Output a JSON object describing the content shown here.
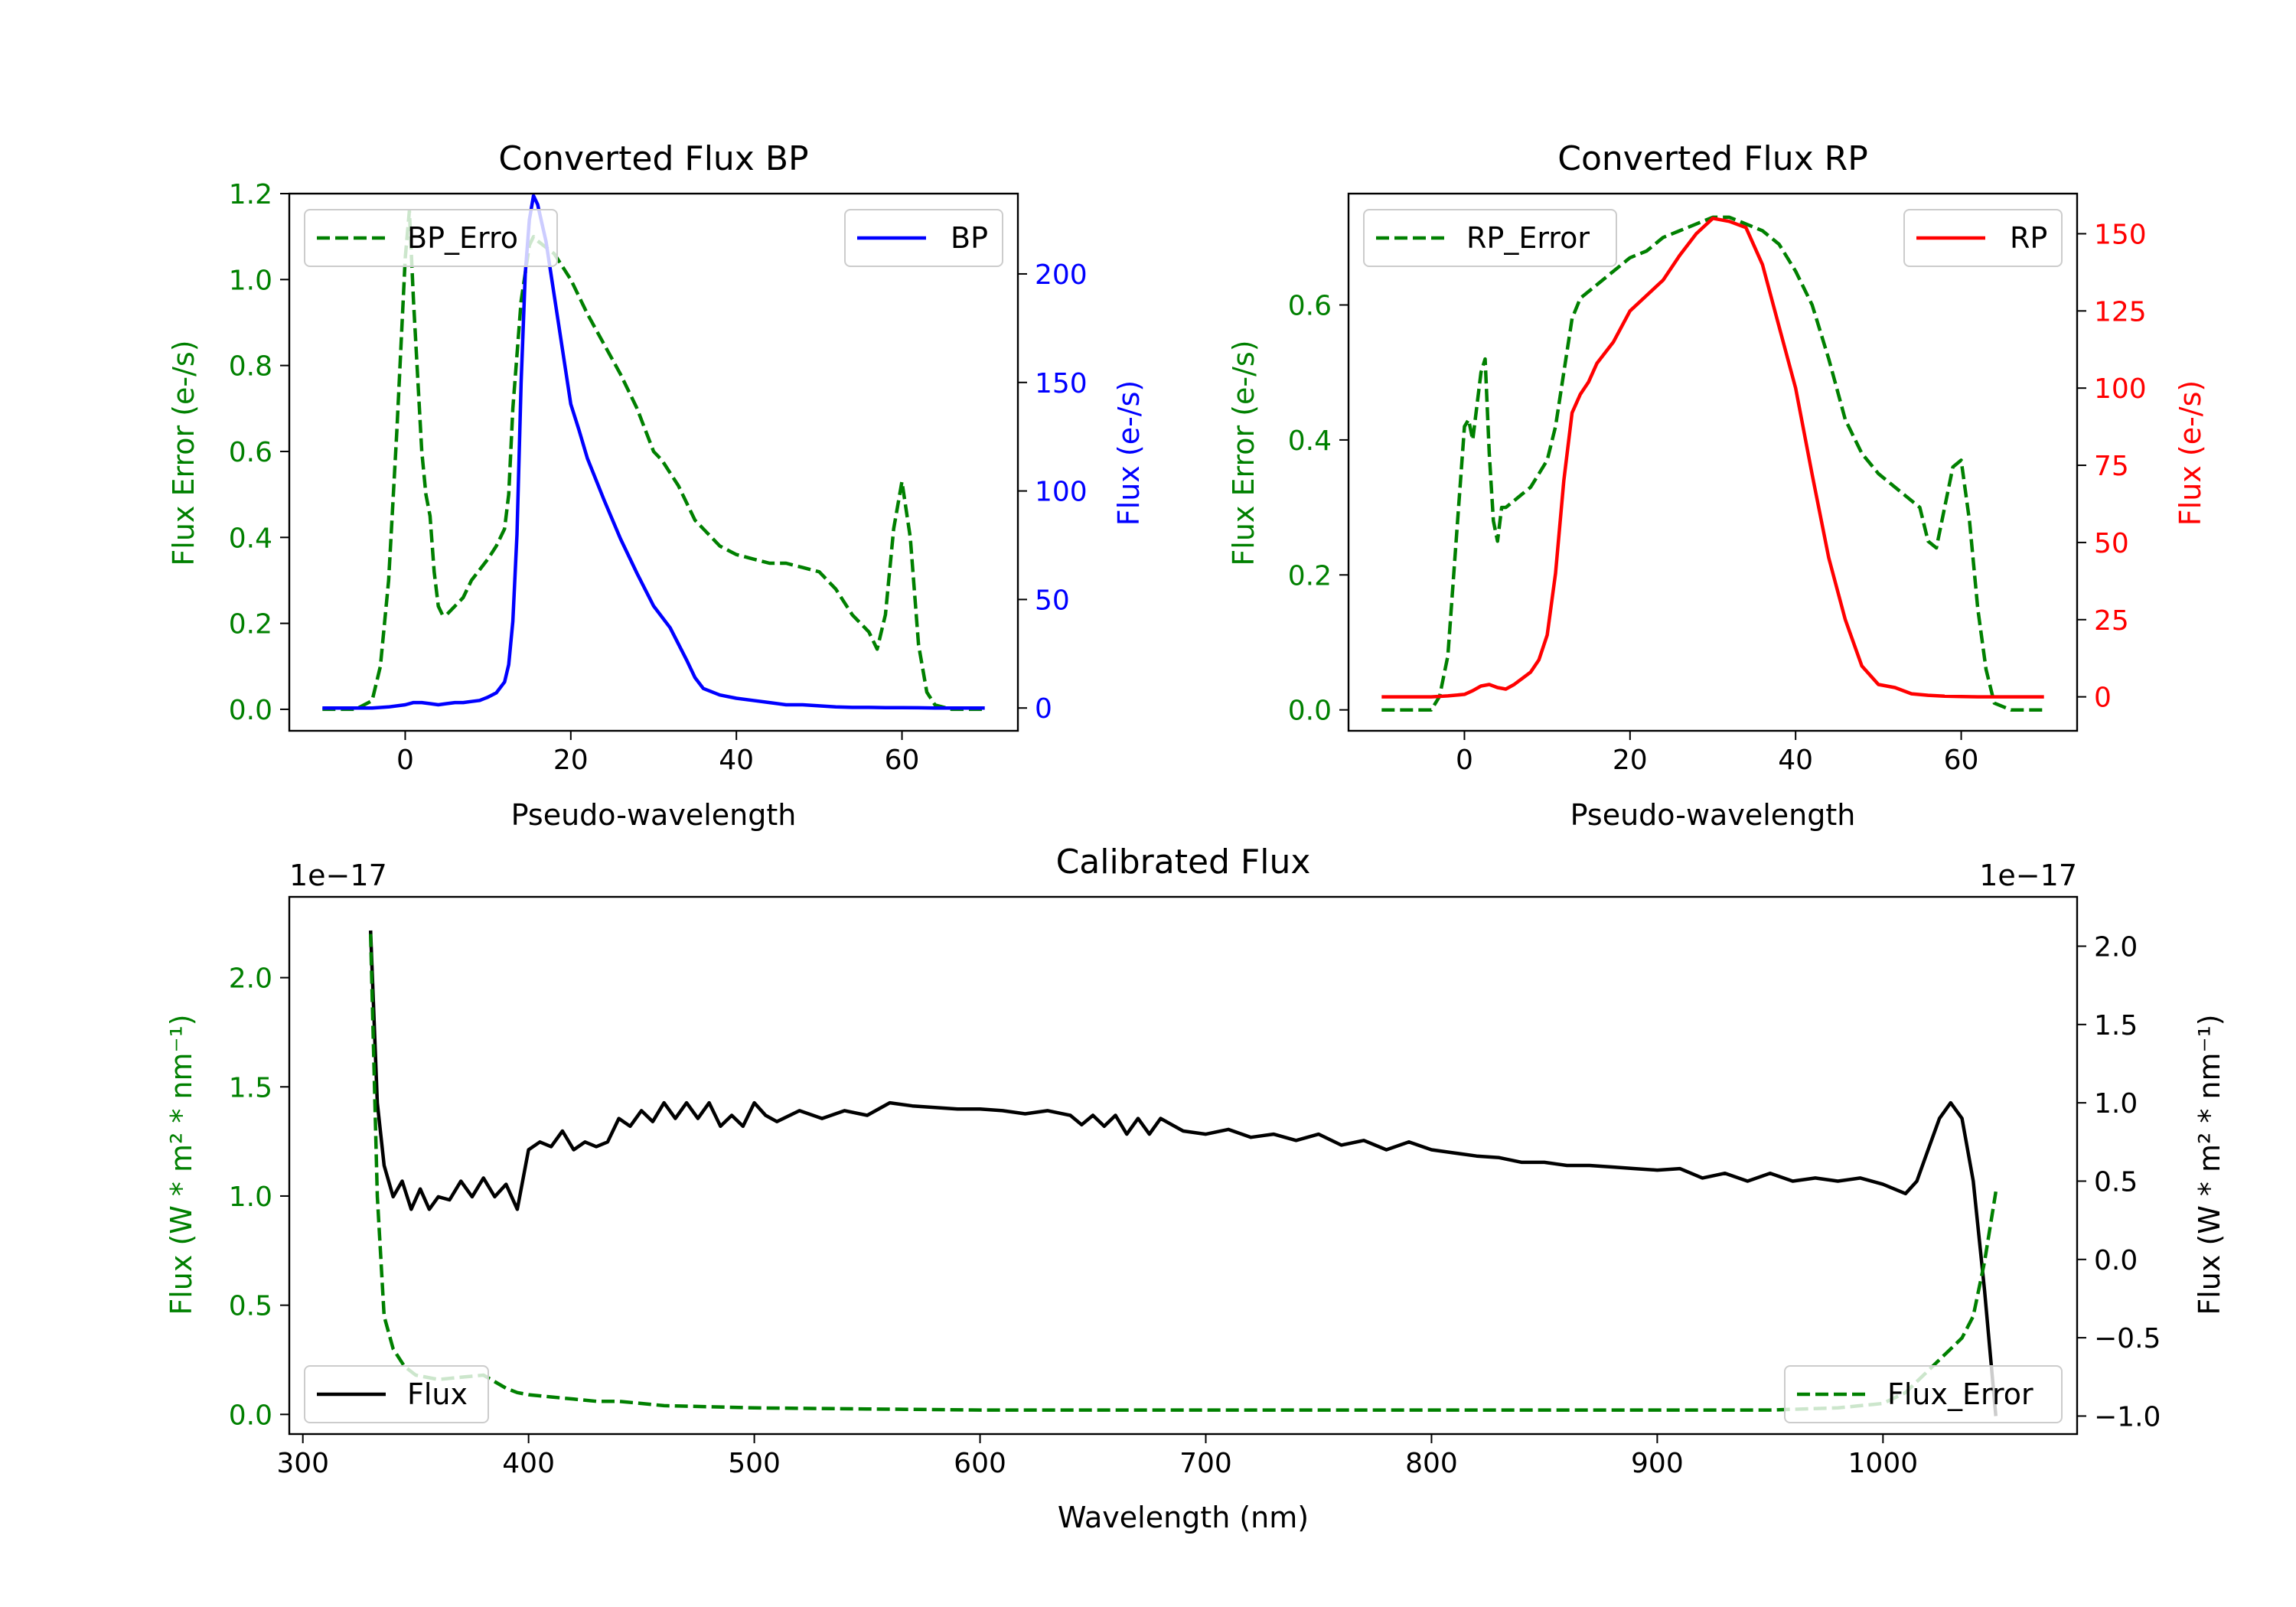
{
  "chart_data": [
    {
      "id": "bp",
      "type": "line",
      "title": "Converted Flux BP",
      "xlabel": "Pseudo-wavelength",
      "ylabel_left": "Flux Error (e-/s)",
      "ylabel_right": "Flux (e-/s)",
      "xlim": [
        -14,
        74
      ],
      "ylim_left": [
        -0.05,
        1.2
      ],
      "ylim_right": [
        -10.5,
        237
      ],
      "xticks": [
        0,
        20,
        40,
        60
      ],
      "xtick_labels": [
        "0",
        "20",
        "40",
        "60"
      ],
      "yticks_left": [
        0.0,
        0.2,
        0.4,
        0.6,
        0.8,
        1.0,
        1.2
      ],
      "ytick_labels_left": [
        "0.0",
        "0.2",
        "0.4",
        "0.6",
        "0.8",
        "1.0",
        "1.2"
      ],
      "yticks_right": [
        0,
        50,
        100,
        150,
        200
      ],
      "ytick_labels_right": [
        "0",
        "50",
        "100",
        "150",
        "200"
      ],
      "left_color": "#008000",
      "right_color": "#0000ff",
      "series": [
        {
          "name": "BP_Error",
          "legend_label": "BP_Erro",
          "axis": "left",
          "style": "dashed",
          "color": "#008000",
          "x": [
            -10,
            -6,
            -4,
            -3,
            -2,
            -1,
            0,
            0.5,
            1,
            2,
            2.5,
            3,
            3.5,
            4,
            4.5,
            5,
            6,
            7,
            8,
            10,
            11,
            12,
            12.5,
            13,
            14,
            15,
            15.5,
            16,
            18,
            20,
            22,
            24,
            26,
            28,
            30,
            31,
            32,
            33,
            34,
            35,
            36,
            38,
            40,
            42,
            44,
            46,
            48,
            50,
            52,
            54,
            56,
            57,
            58,
            59,
            60,
            61,
            62,
            63,
            64,
            66,
            68,
            70
          ],
          "y": [
            0.0,
            0.0,
            0.02,
            0.1,
            0.3,
            0.65,
            1.05,
            1.16,
            0.95,
            0.6,
            0.5,
            0.45,
            0.32,
            0.24,
            0.22,
            0.22,
            0.24,
            0.26,
            0.3,
            0.35,
            0.38,
            0.42,
            0.5,
            0.7,
            0.95,
            1.08,
            1.1,
            1.09,
            1.06,
            1.0,
            0.92,
            0.85,
            0.78,
            0.7,
            0.6,
            0.58,
            0.55,
            0.52,
            0.48,
            0.44,
            0.42,
            0.38,
            0.36,
            0.35,
            0.34,
            0.34,
            0.33,
            0.32,
            0.28,
            0.22,
            0.18,
            0.14,
            0.22,
            0.42,
            0.53,
            0.4,
            0.15,
            0.04,
            0.01,
            0.0,
            0.0,
            0.0
          ]
        },
        {
          "name": "BP",
          "legend_label": "BP",
          "axis": "right",
          "style": "solid",
          "color": "#0000ff",
          "x": [
            -10,
            -6,
            -4,
            -2,
            0,
            1,
            2,
            3,
            4,
            5,
            6,
            7,
            8,
            9,
            10,
            11,
            12,
            12.5,
            13,
            13.5,
            14,
            14.5,
            15,
            15.5,
            16,
            17,
            18,
            19,
            20,
            21,
            22,
            24,
            26,
            28,
            30,
            32,
            34,
            35,
            36,
            38,
            40,
            42,
            44,
            46,
            48,
            50,
            52,
            54,
            56,
            58,
            60,
            62,
            64,
            66,
            68,
            70
          ],
          "y": [
            0,
            0,
            0,
            0.5,
            1.5,
            2.5,
            2.5,
            2,
            1.5,
            2,
            2.5,
            2.5,
            3,
            3.5,
            5,
            7,
            12,
            20,
            40,
            80,
            150,
            200,
            225,
            236,
            232,
            215,
            190,
            165,
            140,
            128,
            115,
            96,
            78,
            62,
            47,
            37,
            22,
            14,
            9,
            6,
            4.5,
            3.5,
            2.5,
            1.5,
            1.5,
            1,
            0.5,
            0.3,
            0.3,
            0.2,
            0.2,
            0.1,
            0,
            0,
            0,
            0
          ]
        }
      ]
    },
    {
      "id": "rp",
      "type": "line",
      "title": "Converted Flux RP",
      "xlabel": "Pseudo-wavelength",
      "ylabel_left": "Flux Error (e-/s)",
      "ylabel_right": "Flux (e-/s)",
      "xlim": [
        -14,
        74
      ],
      "ylim_left": [
        -0.031,
        0.765
      ],
      "ylim_right": [
        -11,
        163
      ],
      "xticks": [
        0,
        20,
        40,
        60
      ],
      "xtick_labels": [
        "0",
        "20",
        "40",
        "60"
      ],
      "yticks_left": [
        0.0,
        0.2,
        0.4,
        0.6
      ],
      "ytick_labels_left": [
        "0.0",
        "0.2",
        "0.4",
        "0.6"
      ],
      "yticks_right": [
        0,
        25,
        50,
        75,
        100,
        125,
        150
      ],
      "ytick_labels_right": [
        "0",
        "25",
        "50",
        "75",
        "100",
        "125",
        "150"
      ],
      "left_color": "#008000",
      "right_color": "#ff0000",
      "series": [
        {
          "name": "RP_Error",
          "legend_label": "RP_Error",
          "axis": "left",
          "style": "dashed",
          "color": "#008000",
          "x": [
            -10,
            -6,
            -4,
            -3,
            -2,
            -1,
            0,
            0.5,
            1,
            1.5,
            2,
            2.5,
            3,
            3.5,
            4,
            4.5,
            5,
            6,
            7,
            8,
            9,
            10,
            11,
            12,
            13,
            14,
            15,
            16,
            18,
            20,
            22,
            24,
            26,
            28,
            30,
            32,
            34,
            36,
            38,
            40,
            42,
            44,
            46,
            48,
            50,
            52,
            54,
            55,
            56,
            57,
            58,
            59,
            60,
            61,
            62,
            63,
            64,
            66,
            68,
            70
          ],
          "y": [
            0.0,
            0.0,
            0.0,
            0.02,
            0.08,
            0.25,
            0.42,
            0.43,
            0.4,
            0.45,
            0.5,
            0.52,
            0.38,
            0.28,
            0.25,
            0.3,
            0.3,
            0.31,
            0.32,
            0.33,
            0.35,
            0.37,
            0.42,
            0.5,
            0.58,
            0.61,
            0.62,
            0.63,
            0.65,
            0.67,
            0.68,
            0.7,
            0.71,
            0.72,
            0.73,
            0.73,
            0.72,
            0.71,
            0.69,
            0.65,
            0.6,
            0.52,
            0.43,
            0.38,
            0.35,
            0.33,
            0.31,
            0.3,
            0.25,
            0.24,
            0.3,
            0.36,
            0.37,
            0.28,
            0.15,
            0.06,
            0.01,
            0.0,
            0.0,
            0.0
          ]
        },
        {
          "name": "RP",
          "legend_label": "RP",
          "axis": "right",
          "style": "solid",
          "color": "#ff0000",
          "x": [
            -10,
            -6,
            -4,
            -2,
            0,
            1,
            2,
            3,
            4,
            5,
            6,
            7,
            8,
            9,
            10,
            11,
            12,
            13,
            14,
            15,
            16,
            18,
            20,
            22,
            24,
            26,
            28,
            30,
            32,
            34,
            36,
            38,
            40,
            42,
            44,
            46,
            48,
            50,
            52,
            54,
            56,
            58,
            60,
            62,
            64,
            66,
            68,
            70
          ],
          "y": [
            0,
            0,
            0,
            0.3,
            0.8,
            2,
            3.5,
            4,
            3,
            2.5,
            4,
            6,
            8,
            12,
            20,
            40,
            70,
            92,
            98,
            102,
            108,
            115,
            125,
            130,
            135,
            143,
            150,
            155,
            154,
            152,
            140,
            120,
            100,
            72,
            45,
            25,
            10,
            4,
            3,
            1,
            0.5,
            0.2,
            0.1,
            0,
            0,
            0,
            0,
            0
          ]
        }
      ]
    },
    {
      "id": "cal",
      "type": "line",
      "title": "Calibrated Flux",
      "xlabel": "Wavelength (nm)",
      "ylabel_left": "Flux (W * m² * nm⁻¹)",
      "ylabel_right": "Flux (W * m² * nm⁻¹)",
      "offset_left": "1e−17",
      "offset_right": "1e−17",
      "xlim": [
        294,
        1086
      ],
      "ylim_left": [
        -0.09,
        2.37
      ],
      "ylim_right": [
        -1.115,
        2.315
      ],
      "xticks": [
        300,
        400,
        500,
        600,
        700,
        800,
        900,
        1000
      ],
      "xtick_labels": [
        "300",
        "400",
        "500",
        "600",
        "700",
        "800",
        "900",
        "1000"
      ],
      "yticks_left": [
        0.0,
        0.5,
        1.0,
        1.5,
        2.0
      ],
      "ytick_labels_left": [
        "0.0",
        "0.5",
        "1.0",
        "1.5",
        "2.0"
      ],
      "yticks_right": [
        -1.0,
        -0.5,
        0.0,
        0.5,
        1.0,
        1.5,
        2.0
      ],
      "ytick_labels_right": [
        "−1.0",
        "−0.5",
        "0.0",
        "0.5",
        "1.0",
        "1.5",
        "2.0"
      ],
      "left_color": "#008000",
      "right_color": "#000000",
      "series": [
        {
          "name": "Flux",
          "legend_label": "Flux",
          "axis": "right",
          "style": "solid",
          "color": "#000000",
          "x": [
            330,
            333,
            336,
            340,
            344,
            348,
            352,
            356,
            360,
            365,
            370,
            375,
            380,
            385,
            390,
            395,
            400,
            405,
            410,
            415,
            420,
            425,
            430,
            435,
            440,
            445,
            450,
            455,
            460,
            465,
            470,
            475,
            480,
            485,
            490,
            495,
            500,
            505,
            510,
            520,
            530,
            540,
            550,
            560,
            570,
            580,
            590,
            600,
            610,
            620,
            630,
            640,
            645,
            650,
            655,
            660,
            665,
            670,
            675,
            680,
            690,
            700,
            710,
            720,
            730,
            740,
            750,
            760,
            770,
            780,
            790,
            800,
            810,
            820,
            830,
            840,
            850,
            860,
            870,
            880,
            890,
            900,
            910,
            920,
            930,
            940,
            950,
            960,
            970,
            980,
            990,
            1000,
            1010,
            1015,
            1020,
            1025,
            1030,
            1035,
            1040,
            1045,
            1050
          ],
          "y": [
            2.1,
            1.0,
            0.6,
            0.4,
            0.5,
            0.32,
            0.45,
            0.32,
            0.4,
            0.38,
            0.5,
            0.4,
            0.52,
            0.4,
            0.48,
            0.32,
            0.7,
            0.75,
            0.72,
            0.82,
            0.7,
            0.75,
            0.72,
            0.75,
            0.9,
            0.85,
            0.95,
            0.88,
            1.0,
            0.9,
            1.0,
            0.9,
            1.0,
            0.85,
            0.92,
            0.85,
            1.0,
            0.92,
            0.88,
            0.95,
            0.9,
            0.95,
            0.92,
            1.0,
            0.98,
            0.97,
            0.96,
            0.96,
            0.95,
            0.93,
            0.95,
            0.92,
            0.86,
            0.92,
            0.85,
            0.92,
            0.8,
            0.9,
            0.8,
            0.9,
            0.82,
            0.8,
            0.83,
            0.78,
            0.8,
            0.76,
            0.8,
            0.73,
            0.76,
            0.7,
            0.75,
            0.7,
            0.68,
            0.66,
            0.65,
            0.62,
            0.62,
            0.6,
            0.6,
            0.59,
            0.58,
            0.57,
            0.58,
            0.52,
            0.55,
            0.5,
            0.55,
            0.5,
            0.52,
            0.5,
            0.52,
            0.48,
            0.42,
            0.5,
            0.7,
            0.9,
            1.0,
            0.9,
            0.5,
            -0.2,
            -1.0
          ]
        },
        {
          "name": "Flux_Error",
          "legend_label": "Flux_Error",
          "axis": "left",
          "style": "dashed",
          "color": "#008000",
          "x": [
            330,
            333,
            336,
            340,
            345,
            350,
            360,
            370,
            380,
            385,
            390,
            395,
            400,
            410,
            420,
            430,
            440,
            450,
            460,
            480,
            500,
            550,
            600,
            650,
            700,
            750,
            800,
            850,
            900,
            950,
            980,
            1000,
            1010,
            1020,
            1030,
            1035,
            1040,
            1045,
            1050
          ],
          "y": [
            2.2,
            1.0,
            0.45,
            0.3,
            0.22,
            0.18,
            0.16,
            0.17,
            0.18,
            0.15,
            0.12,
            0.1,
            0.09,
            0.08,
            0.07,
            0.06,
            0.06,
            0.05,
            0.04,
            0.035,
            0.03,
            0.025,
            0.02,
            0.02,
            0.02,
            0.02,
            0.02,
            0.02,
            0.02,
            0.02,
            0.03,
            0.05,
            0.1,
            0.2,
            0.3,
            0.35,
            0.45,
            0.7,
            1.02
          ]
        }
      ]
    }
  ]
}
